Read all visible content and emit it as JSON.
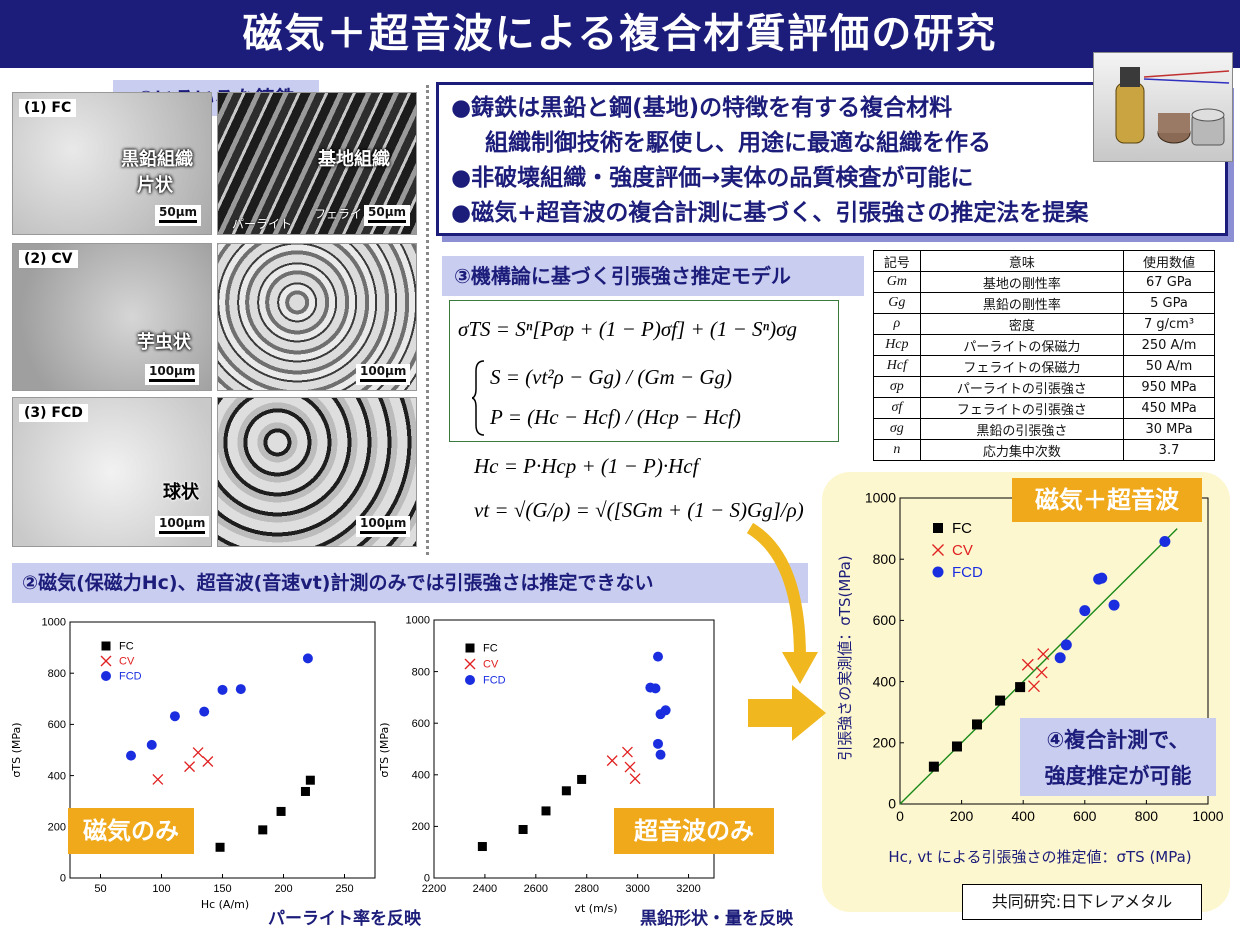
{
  "title": "磁気＋超音波による複合材質評価の研究",
  "section1": {
    "label": "①いろいろな鋳鉄",
    "photos": [
      {
        "tag": "(1) FC",
        "note_left": "黒鉛組織",
        "note_left2": "片状",
        "note_right": "基地組織",
        "extra1": "パーライト",
        "extra2": "フェライト",
        "scale_left": "50μm",
        "scale_right": "50μm"
      },
      {
        "tag": "(2) CV",
        "note_left": "芋虫状",
        "scale_left": "100μm",
        "scale_right": "100μm"
      },
      {
        "tag": "(3) FCD",
        "note_left": "球状",
        "scale_left": "100μm",
        "scale_right": "100μm"
      }
    ]
  },
  "bullets": {
    "line1": "●鋳鉄は黒鉛と鋼(基地)の特徴を有する複合材料",
    "line2": "組織制御技術を駆使し、用途に最適な組織を作る",
    "line3": "●非破壊組織・強度評価→実体の品質検査が可能に",
    "line4": "●磁気+超音波の複合計測に基づく、引張強さの推定法を提案"
  },
  "section3": {
    "label": "③機構論に基づく引張強さ推定モデル",
    "eq1": "σTS = Sⁿ[Pσp + (1 − P)σf] + (1 − Sⁿ)σg",
    "eq2": "S = (vt²ρ − Gg) / (Gm − Gg)",
    "eq3": "P = (Hc − Hcf) / (Hcp − Hcf)",
    "eq4": "Hc = P·Hcp + (1 − P)·Hcf",
    "eq5": "vt = √(G/ρ) = √([SGm + (1 − S)Gg]/ρ)"
  },
  "params_table": {
    "headers": [
      "記号",
      "意味",
      "使用数値"
    ],
    "rows": [
      [
        "Gm",
        "基地の剛性率",
        "67 GPa"
      ],
      [
        "Gg",
        "黒鉛の剛性率",
        "5 GPa"
      ],
      [
        "ρ",
        "密度",
        "7 g/cm³"
      ],
      [
        "Hcp",
        "パーライトの保磁力",
        "250 A/m"
      ],
      [
        "Hcf",
        "フェライトの保磁力",
        "50 A/m"
      ],
      [
        "σp",
        "パーライトの引張強さ",
        "950 MPa"
      ],
      [
        "σf",
        "フェライトの引張強さ",
        "450 MPa"
      ],
      [
        "σg",
        "黒鉛の引張強さ",
        "30 MPa"
      ],
      [
        "n",
        "応力集中次数",
        "3.7"
      ]
    ]
  },
  "section2": {
    "label": "②磁気(保磁力Hc)、超音波(音速vt)計測のみでは引張強さは推定できない",
    "tag_magnetic": "磁気のみ",
    "tag_ultrasonic": "超音波のみ",
    "caption_magnetic": "パーライト率を反映",
    "caption_ultrasonic": "黒鉛形状・量を反映"
  },
  "section4": {
    "tag": "磁気＋超音波",
    "note_line1": "④複合計測で、",
    "note_line2": "強度推定が可能",
    "collab": "共同研究:日下レアメタル"
  },
  "colors": {
    "navy": "#1c1c7a",
    "lavender": "#c9cdf0",
    "orange": "#f0a91a",
    "fc": "#000000",
    "cv": "#e02020",
    "fcd": "#1a2ee0",
    "fit_line": "#1a8a1a"
  },
  "chart_data": [
    {
      "type": "scatter",
      "xlabel": "Hc (A/m)",
      "ylabel": "σTS (MPa)",
      "xlim": [
        25,
        275
      ],
      "ylim": [
        0,
        1000
      ],
      "xticks": [
        50,
        100,
        150,
        200,
        250
      ],
      "yticks": [
        0,
        200,
        400,
        600,
        800,
        1000
      ],
      "legend": "top-left",
      "series": [
        {
          "name": "FC",
          "marker": "square",
          "color": "#000000",
          "points": [
            [
              148,
              120
            ],
            [
              183,
              188
            ],
            [
              198,
              260
            ],
            [
              218,
              338
            ],
            [
              222,
              382
            ]
          ]
        },
        {
          "name": "CV",
          "marker": "x",
          "color": "#e02020",
          "points": [
            [
              97,
              385
            ],
            [
              123,
              435
            ],
            [
              130,
              490
            ],
            [
              138,
              455
            ]
          ]
        },
        {
          "name": "FCD",
          "marker": "circle",
          "color": "#1a2ee0",
          "points": [
            [
              75,
              478
            ],
            [
              92,
              520
            ],
            [
              111,
              632
            ],
            [
              135,
              650
            ],
            [
              150,
              735
            ],
            [
              165,
              738
            ],
            [
              220,
              858
            ]
          ]
        }
      ]
    },
    {
      "type": "scatter",
      "xlabel": "vt (m/s)",
      "ylabel": "σTS (MPa)",
      "xlim": [
        2200,
        3300
      ],
      "ylim": [
        0,
        1000
      ],
      "xticks": [
        2200,
        2400,
        2600,
        2800,
        3000,
        3200
      ],
      "yticks": [
        0,
        200,
        400,
        600,
        800,
        1000
      ],
      "legend": "top-left",
      "series": [
        {
          "name": "FC",
          "marker": "square",
          "color": "#000000",
          "points": [
            [
              2390,
              122
            ],
            [
              2550,
              188
            ],
            [
              2640,
              260
            ],
            [
              2720,
              338
            ],
            [
              2780,
              382
            ]
          ]
        },
        {
          "name": "CV",
          "marker": "x",
          "color": "#e02020",
          "points": [
            [
              2900,
              455
            ],
            [
              2960,
              488
            ],
            [
              2970,
              430
            ],
            [
              2990,
              385
            ]
          ]
        },
        {
          "name": "FCD",
          "marker": "circle",
          "color": "#1a2ee0",
          "points": [
            [
              3050,
              738
            ],
            [
              3070,
              735
            ],
            [
              3080,
              858
            ],
            [
              3080,
              520
            ],
            [
              3090,
              478
            ],
            [
              3090,
              635
            ],
            [
              3110,
              650
            ]
          ]
        }
      ]
    },
    {
      "type": "scatter",
      "xlabel": "Hc, vt による引張強さの推定値：σTS (MPa)",
      "ylabel": "引張強さの実測値：σTS(MPa)",
      "xlim": [
        0,
        1000
      ],
      "ylim": [
        0,
        1000
      ],
      "xticks": [
        0,
        200,
        400,
        600,
        800,
        1000
      ],
      "yticks": [
        0,
        200,
        400,
        600,
        800,
        1000
      ],
      "legend": "top-left",
      "fit_line": [
        [
          0,
          0
        ],
        [
          900,
          900
        ]
      ],
      "series": [
        {
          "name": "FC",
          "marker": "square",
          "color": "#000000",
          "points": [
            [
              110,
              122
            ],
            [
              185,
              188
            ],
            [
              250,
              260
            ],
            [
              325,
              338
            ],
            [
              390,
              382
            ]
          ]
        },
        {
          "name": "CV",
          "marker": "x",
          "color": "#e02020",
          "points": [
            [
              415,
              455
            ],
            [
              435,
              385
            ],
            [
              460,
              430
            ],
            [
              465,
              490
            ]
          ]
        },
        {
          "name": "FCD",
          "marker": "circle",
          "color": "#1a2ee0",
          "points": [
            [
              520,
              478
            ],
            [
              540,
              520
            ],
            [
              600,
              632
            ],
            [
              645,
              735
            ],
            [
              655,
              738
            ],
            [
              695,
              650
            ],
            [
              860,
              858
            ]
          ]
        }
      ]
    }
  ]
}
